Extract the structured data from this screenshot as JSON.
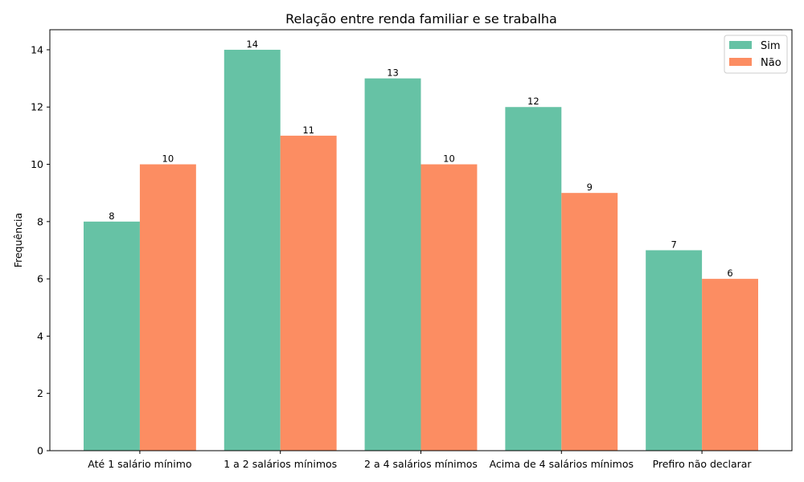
{
  "chart_data": {
    "type": "bar",
    "title": "Relação entre renda familiar e se trabalha",
    "xlabel": "",
    "ylabel": "Frequência",
    "ylim": [
      0,
      14.7
    ],
    "yticks": [
      0,
      2,
      4,
      6,
      8,
      10,
      12,
      14
    ],
    "grid": false,
    "legend_position": "top-right",
    "categories": [
      "Até 1 salário mínimo",
      "1 a 2 salários mínimos",
      "2 a 4 salários mínimos",
      "Acima de 4 salários mínimos",
      "Prefiro não declarar"
    ],
    "series": [
      {
        "name": "Sim",
        "color": "#66c2a5",
        "values": [
          8,
          14,
          13,
          12,
          7
        ]
      },
      {
        "name": "Não",
        "color": "#fc8d62",
        "values": [
          10,
          11,
          10,
          9,
          6
        ]
      }
    ]
  }
}
